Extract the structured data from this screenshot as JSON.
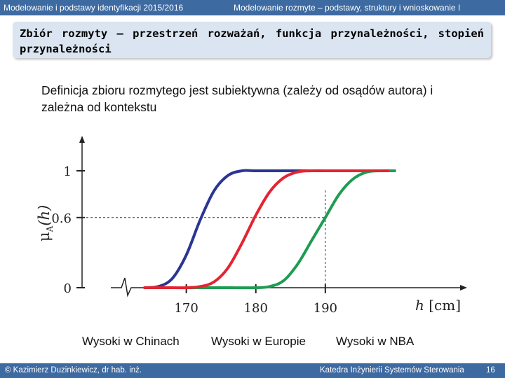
{
  "header": {
    "left": "Modelowanie i podstawy identyfikacji 2015/2016",
    "right": "Modelowanie rozmyte – podstawy, struktury i wnioskowanie I"
  },
  "slide": {
    "title": "Zbiór rozmyty – przestrzeń rozważań, funkcja przynależności, stopień przynależności",
    "intro": "Definicja zbioru rozmytego jest subiektywna (zależy od osądów autora) i zależna od kontekstu"
  },
  "chart_data": {
    "type": "line",
    "xlabel_var": "h",
    "xlabel_unit": "[cm]",
    "ylabel_sym": "μ",
    "ylabel_sub": "A",
    "ylabel_arg": "(h)",
    "xticks": [
      "170",
      "180",
      "190"
    ],
    "yticks": [
      "1",
      "0.6",
      "0"
    ],
    "xlim": [
      155,
      210
    ],
    "ylim": [
      0,
      1
    ],
    "reference_lines": [
      {
        "x": 190,
        "y": 0.6
      }
    ],
    "series": [
      {
        "name": "Wysoki w Chinach",
        "color": "#2b3593",
        "x": [
          164,
          166,
          168,
          170,
          172,
          174,
          176,
          178,
          180,
          183,
          186,
          190,
          194
        ],
        "values": [
          0,
          0.01,
          0.08,
          0.28,
          0.58,
          0.83,
          0.96,
          1,
          1,
          1,
          1,
          1,
          1
        ]
      },
      {
        "name": "Wysoki w Europie",
        "color": "#e32431",
        "x": [
          164,
          168,
          170,
          172,
          174,
          176,
          178,
          180,
          182,
          184,
          186,
          188,
          190,
          194,
          199
        ],
        "values": [
          0,
          0,
          0,
          0.01,
          0.05,
          0.17,
          0.38,
          0.62,
          0.82,
          0.94,
          0.99,
          1,
          1,
          1,
          1
        ]
      },
      {
        "name": "Wysoki w NBA",
        "color": "#1f9c52",
        "x": [
          170,
          176,
          180,
          182,
          184,
          186,
          188,
          190,
          192,
          194,
          196,
          198,
          200
        ],
        "values": [
          0,
          0,
          0,
          0.01,
          0.06,
          0.2,
          0.4,
          0.6,
          0.8,
          0.93,
          0.99,
          1,
          1
        ]
      }
    ]
  },
  "captions": [
    "Wysoki w Chinach",
    "Wysoki w Europie",
    "Wysoki w NBA"
  ],
  "footer": {
    "left": "© Kazimierz Duzinkiewicz, dr hab. inż.",
    "right": "Katedra Inżynierii Systemów Sterowania",
    "page": "16"
  }
}
